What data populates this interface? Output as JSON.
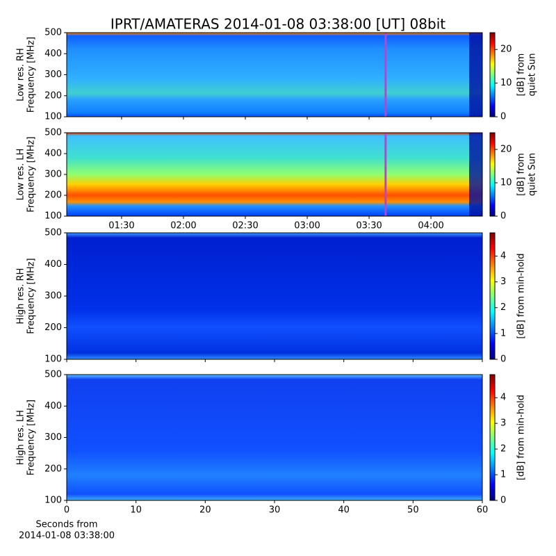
{
  "chart_data": [
    {
      "type": "spectrogram",
      "title": "IPRT/AMATERAS 2014-01-08 03:38:00 [UT]   08bit",
      "ylabel": [
        "Low res. RH",
        "Frequency [MHz]"
      ],
      "ylim": [
        100,
        500
      ],
      "yticks": [
        100,
        200,
        300,
        400,
        500
      ],
      "xlim": [
        63.4,
        264.9
      ],
      "marker_x": 218,
      "marker_color": "#c040d0",
      "colorbar": {
        "label": [
          "[dB] from",
          "quiet Sun"
        ],
        "lim": [
          0,
          25
        ],
        "ticks": [
          0,
          10,
          20
        ]
      }
    },
    {
      "type": "spectrogram",
      "ylabel": [
        "Low res. LH",
        "Frequency [MHz]"
      ],
      "ylim": [
        100,
        500
      ],
      "yticks": [
        100,
        200,
        300,
        400,
        500
      ],
      "xlim": [
        63.4,
        264.9
      ],
      "marker_x": 218,
      "marker_color": "#c040d0",
      "xticks": [
        {
          "value": 90,
          "label": "01:30"
        },
        {
          "value": 120,
          "label": "02:00"
        },
        {
          "value": 150,
          "label": "02:30"
        },
        {
          "value": 180,
          "label": "03:00"
        },
        {
          "value": 210,
          "label": "03:30"
        },
        {
          "value": 240,
          "label": "04:00"
        }
      ],
      "colorbar": {
        "label": [
          "[dB] from",
          "quiet Sun"
        ],
        "lim": [
          0,
          25
        ],
        "ticks": [
          0,
          10,
          20
        ]
      }
    },
    {
      "type": "spectrogram",
      "ylabel": [
        "High res. RH",
        "Frequency [MHz]"
      ],
      "ylim": [
        100,
        500
      ],
      "yticks": [
        100,
        200,
        300,
        400,
        500
      ],
      "xlim": [
        0,
        60
      ],
      "colorbar": {
        "label": [
          "[dB] from min-hold"
        ],
        "lim": [
          0,
          4.9
        ],
        "ticks": [
          0,
          1,
          2,
          3,
          4
        ]
      }
    },
    {
      "type": "spectrogram",
      "ylabel": [
        "High res. LH",
        "Frequency [MHz]"
      ],
      "ylim": [
        100,
        500
      ],
      "yticks": [
        100,
        200,
        300,
        400,
        500
      ],
      "xlim": [
        0,
        60
      ],
      "xticks": [
        0,
        10,
        20,
        30,
        40,
        50,
        60
      ],
      "xlabel": [
        "Seconds from",
        "2014-01-08 03:38:00"
      ],
      "colorbar": {
        "label": [
          "[dB] from min-hold"
        ],
        "lim": [
          0,
          4.9
        ],
        "ticks": [
          0,
          1,
          2,
          3,
          4
        ]
      }
    }
  ]
}
